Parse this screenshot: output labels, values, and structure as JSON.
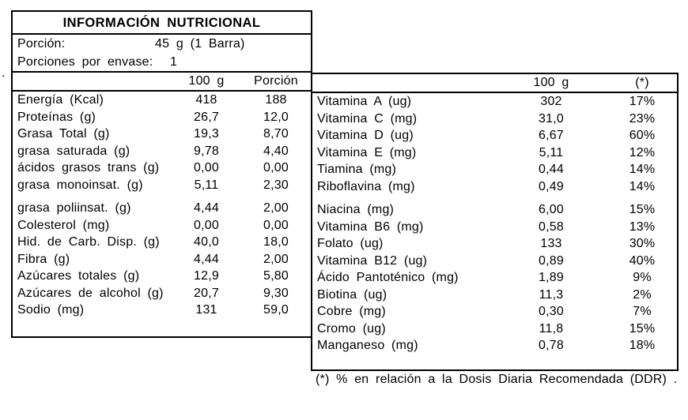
{
  "stray_mark": ".",
  "main_table": {
    "title": "INFORMACIÓN NUTRICIONAL",
    "serving_row": {
      "label": "Porción:",
      "value": "45 g (1 Barra)"
    },
    "servings_per_container_row": {
      "label": "Porciones por envase:",
      "value": "1"
    },
    "header": {
      "col1": "100 g",
      "col2": "Porción"
    },
    "rows": [
      {
        "label": "Energía (Kcal)",
        "v1": "418",
        "v2": "188"
      },
      {
        "label": "Proteínas (g)",
        "v1": "26,7",
        "v2": "12,0"
      },
      {
        "label": "Grasa Total (g)",
        "v1": "19,3",
        "v2": "8,70"
      },
      {
        "label": "grasa saturada (g)",
        "v1": "9,78",
        "v2": "4,40"
      },
      {
        "label": "ácidos grasos trans (g)",
        "v1": "0,00",
        "v2": "0,00"
      },
      {
        "label": "grasa monoinsat. (g)",
        "v1": "5,11",
        "v2": "2,30"
      },
      {
        "label": "grasa poliinsat. (g)",
        "v1": "4,44",
        "v2": "2,00",
        "gap": true
      },
      {
        "label": "Colesterol (mg)",
        "v1": "0,00",
        "v2": "0,00"
      },
      {
        "label": "Hid. de Carb. Disp. (g)",
        "v1": "40,0",
        "v2": "18,0"
      },
      {
        "label": "Fibra (g)",
        "v1": "4,44",
        "v2": "2,00"
      },
      {
        "label": "Azúcares totales (g)",
        "v1": "12,9",
        "v2": "5,80"
      },
      {
        "label": "Azúcares de alcohol (g)",
        "v1": "20,7",
        "v2": "9,30"
      },
      {
        "label": "Sodio (mg)",
        "v1": "131",
        "v2": "59,0"
      }
    ]
  },
  "vitamins_table": {
    "header": {
      "col1": "100 g",
      "col2": "(*)"
    },
    "rows": [
      {
        "label": "Vitamina A (ug)",
        "v1": "302",
        "v2": "17%"
      },
      {
        "label": "Vitamina C (mg)",
        "v1": "31,0",
        "v2": "23%"
      },
      {
        "label": "Vitamina D (ug)",
        "v1": "6,67",
        "v2": "60%"
      },
      {
        "label": "Vitamina E (mg)",
        "v1": "5,11",
        "v2": "12%"
      },
      {
        "label": "Tiamina (mg)",
        "v1": "0,44",
        "v2": "14%"
      },
      {
        "label": "Riboflavina (mg)",
        "v1": "0,49",
        "v2": "14%"
      },
      {
        "label": "Niacina (mg)",
        "v1": "6,00",
        "v2": "15%",
        "gap": true
      },
      {
        "label": "Vitamina B6 (mg)",
        "v1": "0,58",
        "v2": "13%"
      },
      {
        "label": "Folato (ug)",
        "v1": "133",
        "v2": "30%"
      },
      {
        "label": "Vitamina B12 (ug)",
        "v1": "0,89",
        "v2": "40%"
      },
      {
        "label": "Ácido Pantoténico (mg)",
        "v1": "1,89",
        "v2": "9%"
      },
      {
        "label": "Biotina (ug)",
        "v1": "11,3",
        "v2": "2%"
      },
      {
        "label": "Cobre (mg)",
        "v1": "0,30",
        "v2": "7%"
      },
      {
        "label": "Cromo (ug)",
        "v1": "11,8",
        "v2": "15%"
      },
      {
        "label": "Manganeso (mg)",
        "v1": "0,78",
        "v2": "18%"
      }
    ]
  },
  "footnote": "(*) % en relación a la Dosis Diaria Recomendada (DDR) ."
}
